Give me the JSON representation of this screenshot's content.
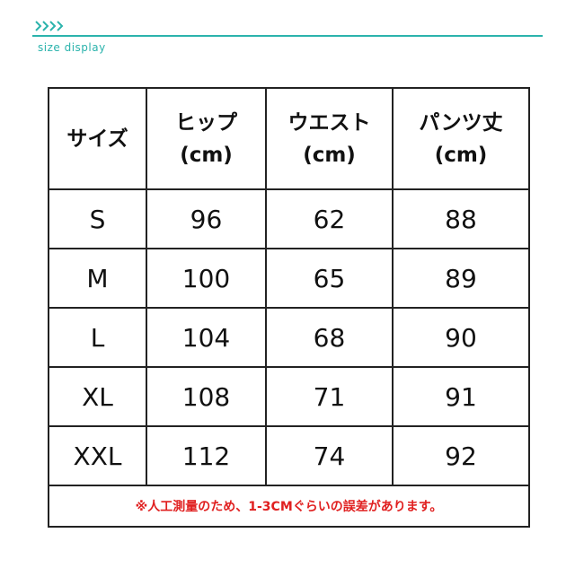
{
  "header": {
    "subtitle": "size display"
  },
  "table": {
    "columns": [
      [
        "サイズ"
      ],
      [
        "ヒップ",
        "(cm)"
      ],
      [
        "ウエスト",
        "(cm)"
      ],
      [
        "パンツ丈",
        "(cm)"
      ]
    ],
    "rows": [
      [
        "S",
        "96",
        "62",
        "88"
      ],
      [
        "M",
        "100",
        "65",
        "89"
      ],
      [
        "L",
        "104",
        "68",
        "90"
      ],
      [
        "XL",
        "108",
        "71",
        "91"
      ],
      [
        "XXL",
        "112",
        "74",
        "92"
      ]
    ],
    "note": "※人工測量のため、1-3CMぐらいの誤差があります。"
  }
}
